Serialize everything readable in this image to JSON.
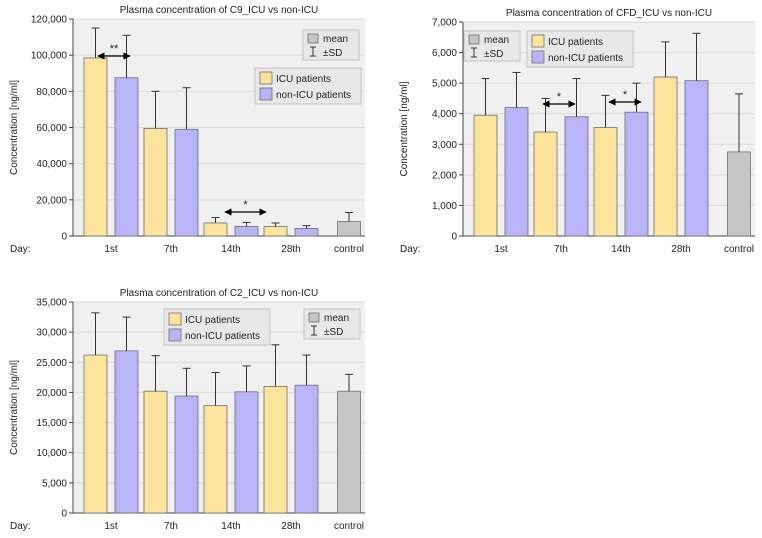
{
  "colors": {
    "icu": "#fde49c",
    "non_icu": "#b9b4f7",
    "control": "#c6c6c6",
    "panel": "#f0f0f0",
    "grid": "#d9d9d9",
    "bar_stroke": "#6e6e6e"
  },
  "chart_data": [
    {
      "id": "c9",
      "type": "bar",
      "title": "Plasma concentration of C9_ICU vs non-ICU",
      "ylabel": "Concentration [ng/ml]",
      "xlabel": "Day:",
      "ylim": [
        0,
        120000
      ],
      "yticks": [
        0,
        20000,
        40000,
        60000,
        80000,
        100000,
        120000
      ],
      "ytick_labels": [
        "0",
        "20,000",
        "40,000",
        "60,000",
        "80,000",
        "100,000",
        "120,000"
      ],
      "categories": [
        "1st",
        "7th",
        "14th",
        "28th",
        "control"
      ],
      "series": [
        {
          "name": "ICU patients",
          "values": [
            98500,
            59500,
            7200,
            5200,
            null
          ],
          "sd": [
            16500,
            20500,
            3000,
            2000,
            null
          ]
        },
        {
          "name": "non-ICU patients",
          "values": [
            87500,
            59000,
            5300,
            4200,
            null
          ],
          "sd": [
            23500,
            23000,
            2200,
            1500,
            null
          ]
        },
        {
          "name": "control",
          "values": [
            null,
            null,
            null,
            null,
            8000
          ],
          "sd": [
            null,
            null,
            null,
            null,
            5000
          ]
        }
      ],
      "legend": {
        "series": [
          "ICU patients",
          "non-ICU patients"
        ],
        "stats": [
          "mean",
          "±SD"
        ]
      },
      "annotations": [
        {
          "day": "1st",
          "text": "**"
        },
        {
          "day": "14th",
          "text": "*"
        }
      ]
    },
    {
      "id": "cfd",
      "type": "bar",
      "title": "Plasma concentration of CFD_ICU vs non-ICU",
      "ylabel": "Concentration [ng/ml]",
      "xlabel": "Day:",
      "ylim": [
        0,
        7000
      ],
      "yticks": [
        0,
        1000,
        2000,
        3000,
        4000,
        5000,
        6000,
        7000
      ],
      "ytick_labels": [
        "0",
        "1,000",
        "2,000",
        "3,000",
        "4,000",
        "5,000",
        "6,000",
        "7,000"
      ],
      "categories": [
        "1st",
        "7th",
        "14th",
        "28th",
        "control"
      ],
      "series": [
        {
          "name": "ICU patients",
          "values": [
            3950,
            3400,
            3550,
            5200,
            null
          ],
          "sd": [
            1200,
            1100,
            1050,
            1150,
            null
          ]
        },
        {
          "name": "non-ICU patients",
          "values": [
            4200,
            3900,
            4050,
            5080,
            null
          ],
          "sd": [
            1150,
            1250,
            950,
            1550,
            null
          ]
        },
        {
          "name": "control",
          "values": [
            null,
            null,
            null,
            null,
            2750
          ],
          "sd": [
            null,
            null,
            null,
            null,
            1900
          ]
        }
      ],
      "legend": {
        "series": [
          "ICU patients",
          "non-ICU patients"
        ],
        "stats": [
          "mean",
          "±SD"
        ]
      },
      "annotations": [
        {
          "day": "7th",
          "text": "*"
        },
        {
          "day": "14th",
          "text": "*"
        }
      ]
    },
    {
      "id": "c2",
      "type": "bar",
      "title": "Plasma concentration of C2_ICU vs non-ICU",
      "ylabel": "Concentration [ng/ml]",
      "xlabel": "Day:",
      "ylim": [
        0,
        35000
      ],
      "yticks": [
        0,
        5000,
        10000,
        15000,
        20000,
        25000,
        30000,
        35000
      ],
      "ytick_labels": [
        "0",
        "5,000",
        "10,000",
        "15,000",
        "20,000",
        "25,000",
        "30,000",
        "35,000"
      ],
      "categories": [
        "1st",
        "7th",
        "14th",
        "28th",
        "control"
      ],
      "series": [
        {
          "name": "ICU patients",
          "values": [
            26200,
            20200,
            17800,
            21000,
            null
          ],
          "sd": [
            7000,
            5900,
            5500,
            6900,
            null
          ]
        },
        {
          "name": "non-ICU patients",
          "values": [
            26900,
            19400,
            20100,
            21200,
            null
          ],
          "sd": [
            5600,
            4600,
            4300,
            5000,
            null
          ]
        },
        {
          "name": "control",
          "values": [
            null,
            null,
            null,
            null,
            20200
          ],
          "sd": [
            null,
            null,
            null,
            null,
            2800
          ]
        }
      ],
      "legend": {
        "series": [
          "ICU patients",
          "non-ICU patients"
        ],
        "stats": [
          "mean",
          "±SD"
        ]
      },
      "annotations": []
    }
  ]
}
